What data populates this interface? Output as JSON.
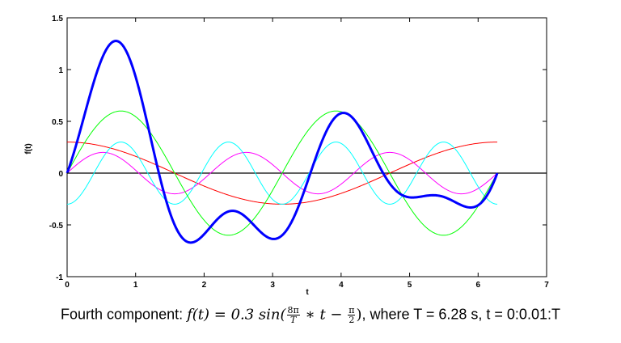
{
  "chart_data": {
    "type": "line",
    "xlabel": "t",
    "ylabel": "f(t)",
    "xlim": [
      0,
      7
    ],
    "ylim": [
      -1,
      1.5
    ],
    "xticks": [
      0,
      1,
      2,
      3,
      4,
      5,
      6,
      7
    ],
    "yticks": [
      -1,
      -0.5,
      0,
      0.5,
      1,
      1.5
    ],
    "xtick_labels": [
      "0",
      "1",
      "2",
      "3",
      "4",
      "5",
      "6",
      "7"
    ],
    "ytick_labels": [
      "-1",
      "-0.5",
      "0",
      "0.5",
      "1",
      "1.5"
    ],
    "grid": false,
    "t_start": 0,
    "t_end": 6.28,
    "t_step": 0.01,
    "series": [
      {
        "color": "#ff0000",
        "width": 1,
        "formula": "0.3*sin(t/T*2*pi + pi/2)"
      },
      {
        "color": "#ff00ff",
        "width": 1,
        "formula": "0.2*sin(6*pi/T*t)"
      },
      {
        "color": "#00ffff",
        "width": 1,
        "formula": "0.3*sin(8*pi/T*t - pi/2)"
      },
      {
        "color": "#00ff00",
        "width": 1,
        "formula": "0.6*sin(4*pi/T*t)"
      },
      {
        "color": "#0000ff",
        "width": 3,
        "formula": "sum of the four components"
      }
    ],
    "zero_line_color": "#000000"
  },
  "caption": {
    "prefix": "Fourth component: ",
    "f_lhs": "f(t) = 0.3 sin(",
    "frac_num": "8π",
    "frac_den": "T",
    "mid": " ∗ t − ",
    "frac2_num": "π",
    "frac2_den": "2",
    "close": ")",
    "suffix": ", where T = 6.28 s, t = 0:0.01:T"
  }
}
